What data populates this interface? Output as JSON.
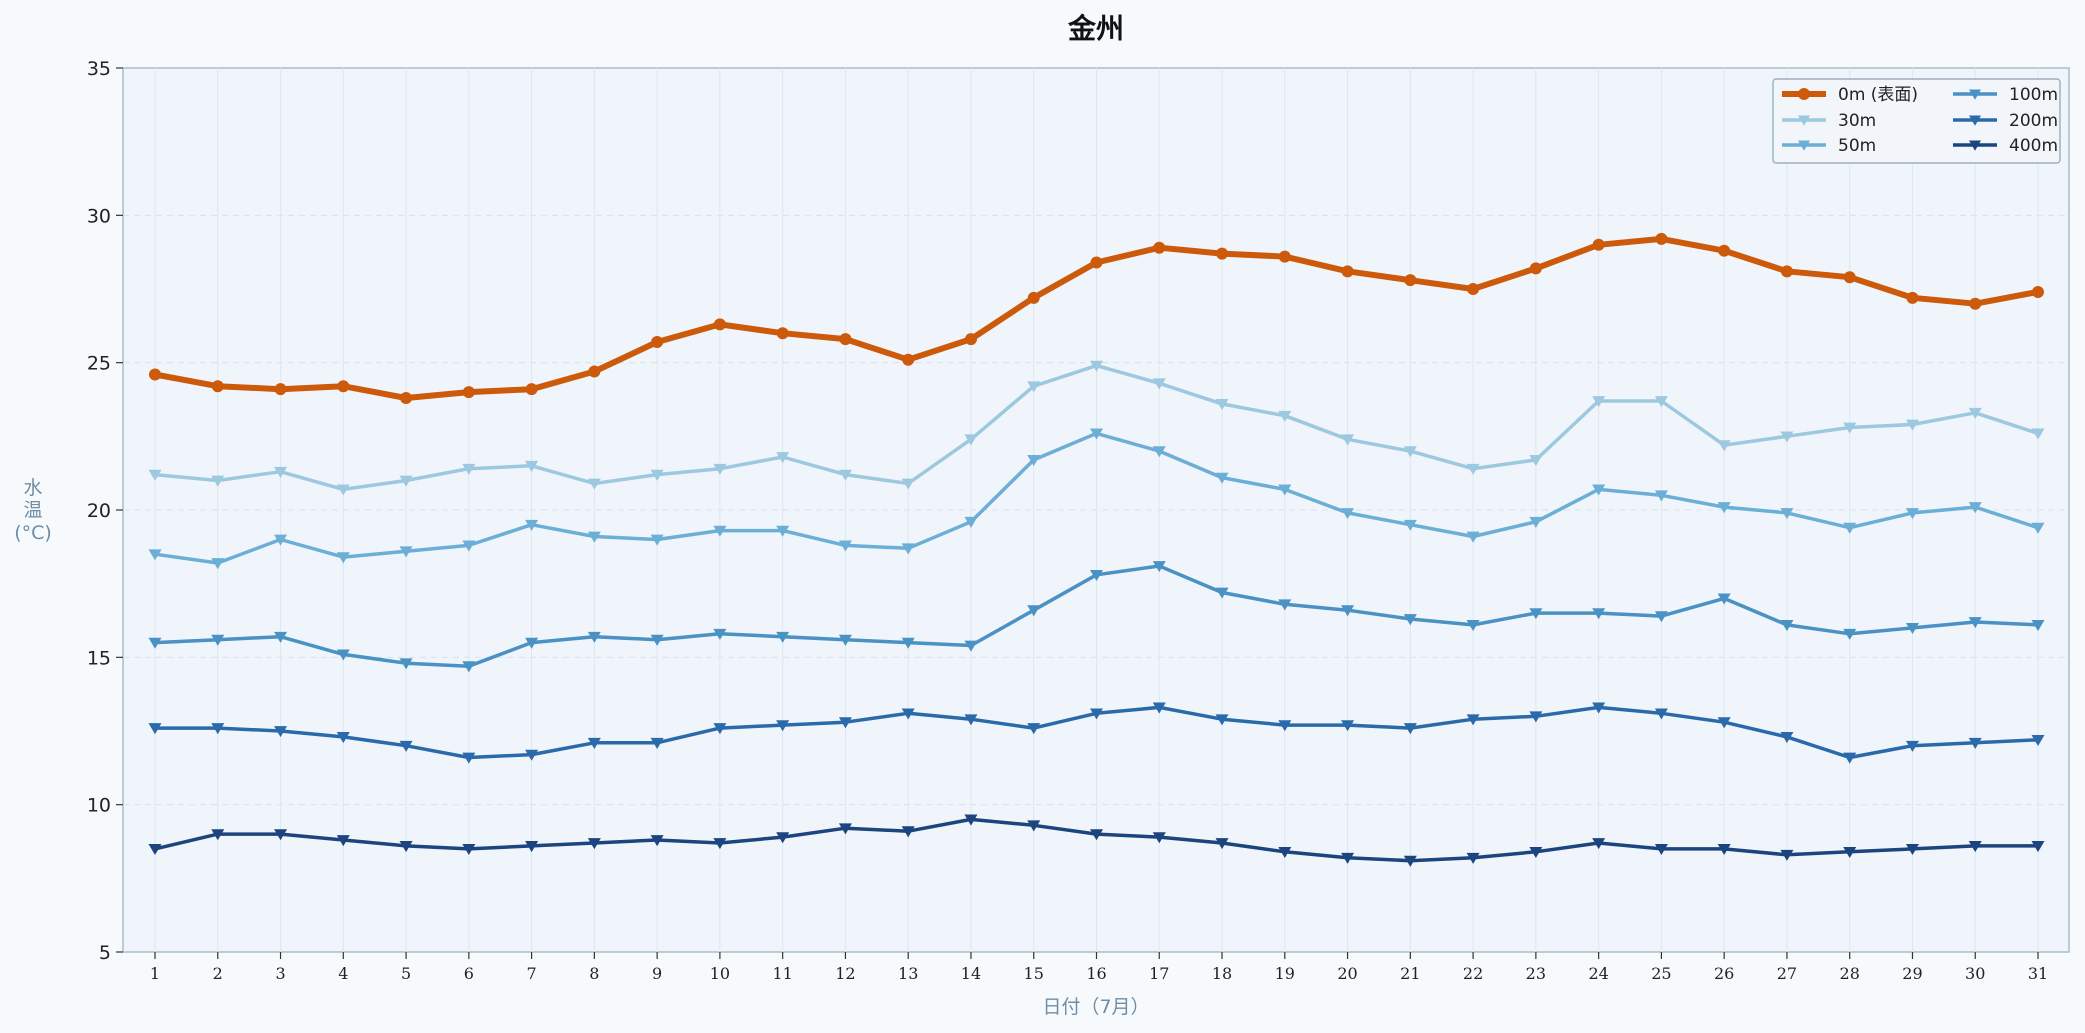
{
  "chart_data": {
    "type": "line",
    "title": "金州",
    "xlabel": "日付（7月）",
    "ylabel": "水温(°C)",
    "ylabel_chars": [
      "水",
      "温",
      "(°C)"
    ],
    "x": [
      1,
      2,
      3,
      4,
      5,
      6,
      7,
      8,
      9,
      10,
      11,
      12,
      13,
      14,
      15,
      16,
      17,
      18,
      19,
      20,
      21,
      22,
      23,
      24,
      25,
      26,
      27,
      28,
      29,
      30,
      31
    ],
    "ylim": [
      5,
      35
    ],
    "yticks": [
      5,
      10,
      15,
      20,
      25,
      30,
      35
    ],
    "grid": true,
    "legend_position": "top-right",
    "series": [
      {
        "name": "0m (表面)",
        "color": "#cc5a0a",
        "marker": "circle",
        "values": [
          24.6,
          24.2,
          24.1,
          24.2,
          23.8,
          24.0,
          24.1,
          24.7,
          25.7,
          26.3,
          26.0,
          25.8,
          25.1,
          25.8,
          27.2,
          28.4,
          28.9,
          28.7,
          28.6,
          28.1,
          27.8,
          27.5,
          28.2,
          29.0,
          29.2,
          28.8,
          28.1,
          27.9,
          27.2,
          27.0,
          27.4
        ]
      },
      {
        "name": "30m",
        "color": "#9cc8e0",
        "marker": "triangle-down",
        "values": [
          21.2,
          21.0,
          21.3,
          20.7,
          21.0,
          21.4,
          21.5,
          20.9,
          21.2,
          21.4,
          21.8,
          21.2,
          20.9,
          22.4,
          24.2,
          24.9,
          24.3,
          23.6,
          23.2,
          22.4,
          22.0,
          21.4,
          21.7,
          23.7,
          23.7,
          22.2,
          22.5,
          22.8,
          22.9,
          23.3,
          22.6
        ]
      },
      {
        "name": "50m",
        "color": "#6baed6",
        "marker": "triangle-down",
        "values": [
          18.5,
          18.2,
          19.0,
          18.4,
          18.6,
          18.8,
          19.5,
          19.1,
          19.0,
          19.3,
          19.3,
          18.8,
          18.7,
          19.6,
          21.7,
          22.6,
          22.0,
          21.1,
          20.7,
          19.9,
          19.5,
          19.1,
          19.6,
          20.7,
          20.5,
          20.1,
          19.9,
          19.4,
          19.9,
          20.1,
          19.4
        ]
      },
      {
        "name": "100m",
        "color": "#4a91c4",
        "marker": "triangle-down",
        "values": [
          15.5,
          15.6,
          15.7,
          15.1,
          14.8,
          14.7,
          15.5,
          15.7,
          15.6,
          15.8,
          15.7,
          15.6,
          15.5,
          15.4,
          16.6,
          17.8,
          18.1,
          17.2,
          16.8,
          16.6,
          16.3,
          16.1,
          16.5,
          16.5,
          16.4,
          17.0,
          16.1,
          15.8,
          16.0,
          16.2,
          16.1
        ]
      },
      {
        "name": "200m",
        "color": "#2a6aaa",
        "marker": "triangle-down",
        "values": [
          12.6,
          12.6,
          12.5,
          12.3,
          12.0,
          11.6,
          11.7,
          12.1,
          12.1,
          12.6,
          12.7,
          12.8,
          13.1,
          12.9,
          12.6,
          13.1,
          13.3,
          12.9,
          12.7,
          12.7,
          12.6,
          12.9,
          13.0,
          13.3,
          13.1,
          12.8,
          12.3,
          11.6,
          12.0,
          12.1,
          12.2
        ]
      },
      {
        "name": "400m",
        "color": "#1c4580",
        "marker": "triangle-down",
        "values": [
          8.5,
          9.0,
          9.0,
          8.8,
          8.6,
          8.5,
          8.6,
          8.7,
          8.8,
          8.7,
          8.9,
          9.2,
          9.1,
          9.5,
          9.3,
          9.0,
          8.9,
          8.7,
          8.4,
          8.2,
          8.1,
          8.2,
          8.4,
          8.7,
          8.5,
          8.5,
          8.3,
          8.4,
          8.5,
          8.6,
          8.6
        ]
      }
    ]
  }
}
